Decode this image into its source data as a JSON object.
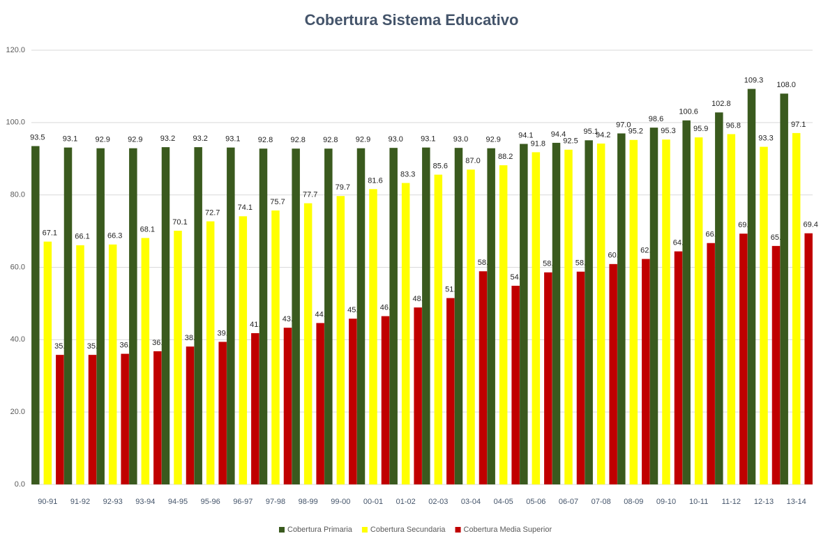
{
  "chart_data": {
    "type": "bar",
    "title": "Cobertura Sistema Educativo",
    "categories": [
      "90-91",
      "91-92",
      "92-93",
      "93-94",
      "94-95",
      "95-96",
      "96-97",
      "97-98",
      "98-99",
      "99-00",
      "00-01",
      "01-02",
      "02-03",
      "03-04",
      "04-05",
      "05-06",
      "06-07",
      "07-08",
      "08-09",
      "09-10",
      "10-11",
      "11-12",
      "12-13",
      "13-14"
    ],
    "series": [
      {
        "name": "Cobertura Primaria",
        "color": "#3a5a1e",
        "values": [
          93.5,
          93.1,
          92.9,
          92.9,
          93.2,
          93.2,
          93.1,
          92.8,
          92.8,
          92.8,
          92.9,
          93.0,
          93.1,
          93.0,
          92.9,
          94.1,
          94.4,
          95.1,
          97.0,
          98.6,
          100.6,
          102.8,
          109.3,
          108.0
        ],
        "value_labels": [
          "93.5",
          "93.1",
          "92.9",
          "92.9",
          "93.2",
          "93.2",
          "93.1",
          "92.8",
          "92.8",
          "92.8",
          "92.9",
          "93.0",
          "93.1",
          "93.0",
          "92.9",
          "94.1",
          "94.4",
          "95.1",
          "97.0",
          "98.6",
          "100.6",
          "102.8",
          "109.3",
          "108.0"
        ]
      },
      {
        "name": "Cobertura Secundaria",
        "color": "#ffff00",
        "values": [
          67.1,
          66.1,
          66.3,
          68.1,
          70.1,
          72.7,
          74.1,
          75.7,
          77.7,
          79.7,
          81.6,
          83.3,
          85.6,
          87.0,
          88.2,
          91.8,
          92.5,
          94.2,
          95.2,
          95.3,
          95.9,
          96.8,
          93.3,
          97.1
        ],
        "value_labels": [
          "67.1",
          "66.1",
          "66.3",
          "68.1",
          "70.1",
          "72.7",
          "74.1",
          "75.7",
          "77.7",
          "79.7",
          "81.6",
          "83.3",
          "85.6",
          "87.0",
          "88.2",
          "91.8",
          "92.5",
          "94.2",
          "95.2",
          "95.3",
          "95.9",
          "96.8",
          "93.3",
          "97.1"
        ]
      },
      {
        "name": "Cobertura Media Superior",
        "color": "#c00000",
        "values": [
          35.8,
          35.8,
          36.1,
          36.8,
          38.1,
          39.4,
          41.8,
          43.3,
          44.6,
          45.8,
          46.5,
          48.9,
          51.5,
          58.9,
          54.9,
          58.6,
          58.8,
          60.9,
          62.3,
          64.4,
          66.7,
          69.3,
          65.9,
          69.4
        ],
        "value_labels": [
          "35.8",
          "35.8",
          "36.1",
          "36.8",
          "38.1",
          "39.4",
          "41.8",
          "43.3",
          "44.6",
          "45.8",
          "46.5",
          "48.9",
          "51.5",
          "58.9",
          "54.9",
          "58.6",
          "58.8",
          "60.9",
          "62.3",
          "64.4",
          "66.7",
          "69.3",
          "65.9",
          "69.4"
        ]
      }
    ],
    "ylim": [
      0,
      120
    ],
    "yticks": [
      {
        "value": 0,
        "label": "0.0"
      },
      {
        "value": 20,
        "label": "20.0"
      },
      {
        "value": 40,
        "label": "40.0"
      },
      {
        "value": 60,
        "label": "60.0"
      },
      {
        "value": 80,
        "label": "80.0"
      },
      {
        "value": 100,
        "label": "100.0"
      },
      {
        "value": 120,
        "label": "120.0"
      }
    ],
    "grid": true,
    "legend": "bottom"
  }
}
